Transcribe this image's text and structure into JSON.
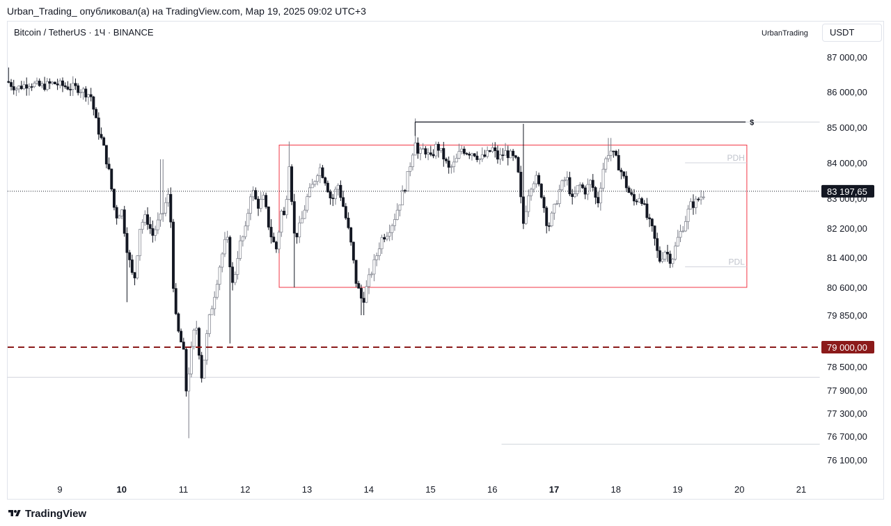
{
  "header": {
    "published_line": "Urban_Trading_ опубликовал(а) на TradingView.com, Мар 19, 2025 09:02 UTC+3"
  },
  "chart_header": {
    "symbol_line": "Bitcoin / TetherUS · 1Ч · BINANCE",
    "username_watermark": "UrbanTrading",
    "currency_label": "USDT"
  },
  "footer": {
    "logo_text": "TradingView"
  },
  "colors": {
    "candle": "#787b86",
    "candle_dark": "#131722",
    "range_box": "#f23645",
    "support_line": "#8b1a1a",
    "price_badge": "#131722",
    "grid_line": "#d1d4dc"
  },
  "chart_data": {
    "type": "candlestick",
    "title": "",
    "xlabel": "",
    "ylabel": "",
    "ylim": [
      75800,
      87500
    ],
    "y_ticks": [
      {
        "value": 87000,
        "label": "87 000,00"
      },
      {
        "value": 86000,
        "label": "86 000,00"
      },
      {
        "value": 85000,
        "label": "85 000,00"
      },
      {
        "value": 84000,
        "label": "84 000,00"
      },
      {
        "value": 83000,
        "label": "83 000,00"
      },
      {
        "value": 82200,
        "label": "82 200,00"
      },
      {
        "value": 81400,
        "label": "81 400,00"
      },
      {
        "value": 80600,
        "label": "80 600,00"
      },
      {
        "value": 79850,
        "label": "79 850,00"
      },
      {
        "value": 78500,
        "label": "78 500,00"
      },
      {
        "value": 77900,
        "label": "77 900,00"
      },
      {
        "value": 77300,
        "label": "77 300,00"
      },
      {
        "value": 76700,
        "label": "76 700,00"
      },
      {
        "value": 76100,
        "label": "76 100,00"
      }
    ],
    "x_ticks": [
      {
        "value": 9,
        "label": "9",
        "bold": false
      },
      {
        "value": 10,
        "label": "10",
        "bold": true
      },
      {
        "value": 11,
        "label": "11",
        "bold": false
      },
      {
        "value": 12,
        "label": "12",
        "bold": false
      },
      {
        "value": 13,
        "label": "13",
        "bold": false
      },
      {
        "value": 14,
        "label": "14",
        "bold": false
      },
      {
        "value": 15,
        "label": "15",
        "bold": false
      },
      {
        "value": 16,
        "label": "16",
        "bold": false
      },
      {
        "value": 17,
        "label": "17",
        "bold": true
      },
      {
        "value": 18,
        "label": "18",
        "bold": false
      },
      {
        "value": 19,
        "label": "19",
        "bold": false
      },
      {
        "value": 20,
        "label": "20",
        "bold": false
      },
      {
        "value": 21,
        "label": "21",
        "bold": false
      }
    ],
    "xlim": [
      8.15,
      21.3
    ],
    "price_path": [
      [
        8.15,
        86300
      ],
      [
        8.3,
        86100
      ],
      [
        8.5,
        86250
      ],
      [
        8.7,
        86150
      ],
      [
        8.9,
        86250
      ],
      [
        9.1,
        86150
      ],
      [
        9.3,
        86100
      ],
      [
        9.5,
        85900
      ],
      [
        9.6,
        85050
      ],
      [
        9.7,
        84500
      ],
      [
        9.8,
        83700
      ],
      [
        9.9,
        82500
      ],
      [
        10.0,
        82700
      ],
      [
        10.1,
        81500
      ],
      [
        10.2,
        80700
      ],
      [
        10.3,
        82300
      ],
      [
        10.4,
        82500
      ],
      [
        10.5,
        82000
      ],
      [
        10.6,
        82400
      ],
      [
        10.65,
        82500
      ],
      [
        10.7,
        82800
      ],
      [
        10.75,
        83100
      ],
      [
        10.8,
        82300
      ],
      [
        10.85,
        80100
      ],
      [
        10.9,
        79500
      ],
      [
        11.0,
        78900
      ],
      [
        11.05,
        77800
      ],
      [
        11.1,
        78600
      ],
      [
        11.2,
        79700
      ],
      [
        11.3,
        78200
      ],
      [
        11.4,
        79600
      ],
      [
        11.5,
        80400
      ],
      [
        11.6,
        81300
      ],
      [
        11.7,
        82000
      ],
      [
        11.8,
        80600
      ],
      [
        11.9,
        81700
      ],
      [
        12.0,
        82100
      ],
      [
        12.1,
        83300
      ],
      [
        12.2,
        82800
      ],
      [
        12.3,
        83000
      ],
      [
        12.4,
        82100
      ],
      [
        12.5,
        81600
      ],
      [
        12.6,
        82800
      ],
      [
        12.65,
        82300
      ],
      [
        12.7,
        84300
      ],
      [
        12.8,
        81900
      ],
      [
        12.9,
        82300
      ],
      [
        13.0,
        83000
      ],
      [
        13.1,
        83400
      ],
      [
        13.2,
        83900
      ],
      [
        13.3,
        83500
      ],
      [
        13.4,
        82900
      ],
      [
        13.5,
        83400
      ],
      [
        13.6,
        82700
      ],
      [
        13.7,
        81900
      ],
      [
        13.8,
        80700
      ],
      [
        13.9,
        80200
      ],
      [
        14.0,
        80800
      ],
      [
        14.1,
        81300
      ],
      [
        14.2,
        81900
      ],
      [
        14.3,
        82100
      ],
      [
        14.4,
        82400
      ],
      [
        14.5,
        82900
      ],
      [
        14.6,
        83400
      ],
      [
        14.7,
        84200
      ],
      [
        14.75,
        84700
      ],
      [
        14.8,
        84200
      ],
      [
        14.9,
        84400
      ],
      [
        15.0,
        84100
      ],
      [
        15.1,
        84500
      ],
      [
        15.2,
        84200
      ],
      [
        15.3,
        83800
      ],
      [
        15.4,
        84000
      ],
      [
        15.5,
        84400
      ],
      [
        15.6,
        84300
      ],
      [
        15.7,
        84300
      ],
      [
        15.8,
        84100
      ],
      [
        15.9,
        84200
      ],
      [
        16.0,
        84400
      ],
      [
        16.1,
        84100
      ],
      [
        16.2,
        84300
      ],
      [
        16.3,
        84200
      ],
      [
        16.4,
        84000
      ],
      [
        16.5,
        82300
      ],
      [
        16.6,
        83300
      ],
      [
        16.7,
        83600
      ],
      [
        16.8,
        83100
      ],
      [
        16.9,
        82200
      ],
      [
        17.0,
        82700
      ],
      [
        17.1,
        83300
      ],
      [
        17.2,
        83600
      ],
      [
        17.3,
        82900
      ],
      [
        17.4,
        83400
      ],
      [
        17.5,
        83200
      ],
      [
        17.6,
        83500
      ],
      [
        17.7,
        82800
      ],
      [
        17.8,
        83900
      ],
      [
        17.9,
        84400
      ],
      [
        18.0,
        84100
      ],
      [
        18.1,
        83700
      ],
      [
        18.2,
        83200
      ],
      [
        18.3,
        82900
      ],
      [
        18.4,
        83100
      ],
      [
        18.5,
        82500
      ],
      [
        18.6,
        82100
      ],
      [
        18.7,
        81300
      ],
      [
        18.8,
        81600
      ],
      [
        18.9,
        81300
      ],
      [
        19.0,
        81900
      ],
      [
        19.1,
        82300
      ],
      [
        19.2,
        82800
      ],
      [
        19.3,
        82900
      ],
      [
        19.4,
        83100
      ],
      [
        19.45,
        83180
      ]
    ],
    "annotations": {
      "range_box": {
        "x_start": 12.55,
        "x_end": 20.12,
        "y_low": 80600,
        "y_high": 84500
      },
      "liquidity_line": {
        "x_start": 14.75,
        "x_end": 20.1,
        "value": 85150,
        "label": "$"
      },
      "pdh": {
        "x_start": 19.12,
        "x_end": 20.12,
        "value": 84000,
        "label": "PDH"
      },
      "pdl": {
        "x_start": 19.12,
        "x_end": 20.12,
        "value": 81150,
        "label": "PDL"
      },
      "support_level": {
        "value": 79000,
        "label": "79 000,00"
      },
      "grey_level_1": {
        "x_start": 8.15,
        "x_end": 21.3,
        "value": 78230
      },
      "grey_level_2": {
        "x_start": 16.15,
        "x_end": 21.3,
        "value": 76500
      },
      "grey_level_3": {
        "x_start": 20.1,
        "x_end": 21.3,
        "value": 85150
      },
      "current_price": {
        "value": 83197.65,
        "label": "83 197,65"
      }
    }
  }
}
